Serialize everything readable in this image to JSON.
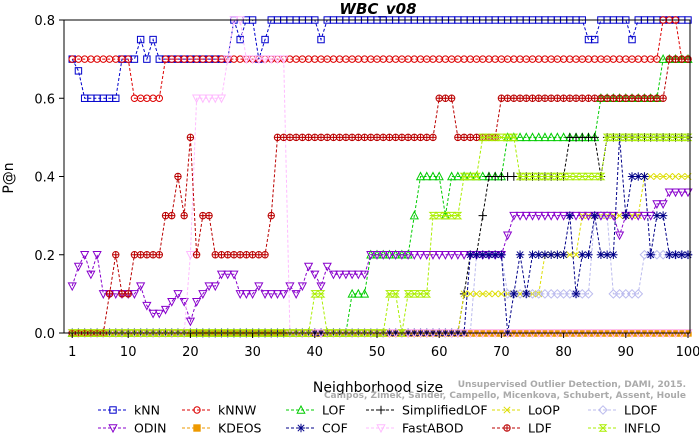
{
  "chart_data": {
    "type": "line",
    "title": "WBC_v08",
    "xlabel": "Neighborhood size",
    "ylabel": "P@n",
    "xlim": [
      0,
      100
    ],
    "ylim": [
      0,
      0.8
    ],
    "xticks": [
      1,
      10,
      20,
      30,
      40,
      50,
      60,
      70,
      80,
      90,
      100
    ],
    "yticks": [
      0.0,
      0.2,
      0.4,
      0.6,
      0.8
    ],
    "xtick_labels": [
      "1",
      "10",
      "20",
      "30",
      "40",
      "50",
      "60",
      "70",
      "80",
      "90",
      "100"
    ],
    "ytick_labels": [
      "0.0",
      "0.2",
      "0.4",
      "0.6",
      "0.8"
    ],
    "grid": false,
    "legend_position": "bottom",
    "watermark": "Campos, Zimek, Sander, Campello, Micenkova, Schubert, Assent, Houle\nUnsupervised Outlier Detection, DAMI, 2015.",
    "series": [
      {
        "name": "kNN",
        "color": "#0000cc",
        "marker": "square",
        "points": [
          [
            1,
            0.7
          ],
          [
            2,
            0.67
          ],
          [
            3,
            0.6
          ],
          [
            8,
            0.6
          ],
          [
            9,
            0.7
          ],
          [
            11,
            0.7
          ],
          [
            12,
            0.75
          ],
          [
            13,
            0.7
          ],
          [
            14,
            0.75
          ],
          [
            15,
            0.7
          ],
          [
            26,
            0.7
          ],
          [
            27,
            0.8
          ],
          [
            28,
            0.75
          ],
          [
            29,
            0.8
          ],
          [
            31,
            0.7
          ],
          [
            32,
            0.75
          ],
          [
            33,
            0.8
          ],
          [
            40,
            0.8
          ],
          [
            41,
            0.75
          ],
          [
            42,
            0.8
          ],
          [
            83,
            0.8
          ],
          [
            84,
            0.75
          ],
          [
            85,
            0.75
          ],
          [
            86,
            0.8
          ],
          [
            90,
            0.8
          ],
          [
            91,
            0.75
          ],
          [
            92,
            0.8
          ],
          [
            100,
            0.8
          ]
        ]
      },
      {
        "name": "kNNW",
        "color": "#dd0000",
        "marker": "circle",
        "points": [
          [
            1,
            0.7
          ],
          [
            10,
            0.7
          ],
          [
            11,
            0.6
          ],
          [
            15,
            0.6
          ],
          [
            16,
            0.7
          ],
          [
            95,
            0.7
          ],
          [
            96,
            0.8
          ],
          [
            98,
            0.8
          ],
          [
            99,
            0.7
          ],
          [
            100,
            0.7
          ]
        ]
      },
      {
        "name": "LOF",
        "color": "#00cc00",
        "marker": "triangle-up",
        "points": [
          [
            1,
            0.0
          ],
          [
            45,
            0.0
          ],
          [
            46,
            0.1
          ],
          [
            48,
            0.1
          ],
          [
            49,
            0.2
          ],
          [
            55,
            0.2
          ],
          [
            56,
            0.3
          ],
          [
            57,
            0.4
          ],
          [
            60,
            0.4
          ],
          [
            61,
            0.3
          ],
          [
            62,
            0.4
          ],
          [
            70,
            0.4
          ],
          [
            71,
            0.5
          ],
          [
            85,
            0.5
          ],
          [
            86,
            0.6
          ],
          [
            95,
            0.6
          ],
          [
            96,
            0.7
          ],
          [
            100,
            0.7
          ]
        ]
      },
      {
        "name": "SimplifiedLOF",
        "color": "#000000",
        "marker": "plus",
        "points": [
          [
            1,
            0.0
          ],
          [
            63,
            0.0
          ],
          [
            64,
            0.1
          ],
          [
            65,
            0.2
          ],
          [
            66,
            0.2
          ],
          [
            67,
            0.3
          ],
          [
            68,
            0.4
          ],
          [
            80,
            0.4
          ],
          [
            81,
            0.5
          ],
          [
            85,
            0.5
          ],
          [
            86,
            0.4
          ],
          [
            87,
            0.5
          ],
          [
            100,
            0.5
          ]
        ]
      },
      {
        "name": "LoOP",
        "color": "#dddd00",
        "marker": "x",
        "points": [
          [
            1,
            0.0
          ],
          [
            63,
            0.0
          ],
          [
            64,
            0.1
          ],
          [
            76,
            0.1
          ],
          [
            77,
            0.2
          ],
          [
            82,
            0.2
          ],
          [
            83,
            0.3
          ],
          [
            92,
            0.3
          ],
          [
            93,
            0.4
          ],
          [
            100,
            0.4
          ]
        ]
      },
      {
        "name": "LDOF",
        "color": "#bbbbee",
        "marker": "diamond",
        "points": [
          [
            1,
            0.0
          ],
          [
            65,
            0.0
          ],
          [
            66,
            0.2
          ],
          [
            70,
            0.2
          ],
          [
            71,
            0.1
          ],
          [
            84,
            0.1
          ],
          [
            85,
            0.3
          ],
          [
            87,
            0.3
          ],
          [
            88,
            0.1
          ],
          [
            92,
            0.1
          ],
          [
            93,
            0.2
          ],
          [
            100,
            0.2
          ]
        ]
      },
      {
        "name": "ODIN",
        "color": "#8800cc",
        "marker": "triangle-down",
        "points": [
          [
            1,
            0.12
          ],
          [
            2,
            0.17
          ],
          [
            3,
            0.2
          ],
          [
            4,
            0.15
          ],
          [
            5,
            0.2
          ],
          [
            6,
            0.1
          ],
          [
            11,
            0.1
          ],
          [
            12,
            0.12
          ],
          [
            13,
            0.07
          ],
          [
            14,
            0.05
          ],
          [
            15,
            0.05
          ],
          [
            16,
            0.06
          ],
          [
            17,
            0.08
          ],
          [
            18,
            0.1
          ],
          [
            19,
            0.08
          ],
          [
            20,
            0.03
          ],
          [
            21,
            0.08
          ],
          [
            22,
            0.1
          ],
          [
            23,
            0.12
          ],
          [
            24,
            0.12
          ],
          [
            25,
            0.15
          ],
          [
            27,
            0.15
          ],
          [
            28,
            0.1
          ],
          [
            30,
            0.1
          ],
          [
            31,
            0.12
          ],
          [
            32,
            0.1
          ],
          [
            35,
            0.1
          ],
          [
            36,
            0.12
          ],
          [
            37,
            0.1
          ],
          [
            38,
            0.12
          ],
          [
            39,
            0.17
          ],
          [
            40,
            0.15
          ],
          [
            41,
            0.12
          ],
          [
            42,
            0.17
          ],
          [
            43,
            0.15
          ],
          [
            48,
            0.15
          ],
          [
            49,
            0.2
          ],
          [
            70,
            0.2
          ],
          [
            71,
            0.25
          ],
          [
            72,
            0.3
          ],
          [
            88,
            0.3
          ],
          [
            89,
            0.25
          ],
          [
            90,
            0.3
          ],
          [
            94,
            0.3
          ],
          [
            95,
            0.33
          ],
          [
            96,
            0.33
          ],
          [
            97,
            0.36
          ],
          [
            100,
            0.36
          ]
        ]
      },
      {
        "name": "KDEOS",
        "color": "#ee9900",
        "marker": "square-filled",
        "points": [
          [
            1,
            0.0
          ],
          [
            100,
            0.0
          ]
        ]
      },
      {
        "name": "COF",
        "color": "#000088",
        "marker": "asterisk",
        "points": [
          [
            1,
            0.0
          ],
          [
            64,
            0.0
          ],
          [
            65,
            0.2
          ],
          [
            70,
            0.2
          ],
          [
            71,
            0.0
          ],
          [
            72,
            0.1
          ],
          [
            73,
            0.2
          ],
          [
            74,
            0.1
          ],
          [
            75,
            0.2
          ],
          [
            80,
            0.2
          ],
          [
            81,
            0.3
          ],
          [
            82,
            0.1
          ],
          [
            83,
            0.2
          ],
          [
            84,
            0.2
          ],
          [
            85,
            0.3
          ],
          [
            86,
            0.2
          ],
          [
            88,
            0.2
          ],
          [
            89,
            0.5
          ],
          [
            90,
            0.3
          ],
          [
            91,
            0.4
          ],
          [
            93,
            0.4
          ],
          [
            94,
            0.2
          ],
          [
            95,
            0.3
          ],
          [
            96,
            0.3
          ],
          [
            97,
            0.2
          ],
          [
            100,
            0.2
          ]
        ]
      },
      {
        "name": "FastABOD",
        "color": "#ffbbff",
        "marker": "triangle-down",
        "points": [
          [
            1,
            0.0
          ],
          [
            19,
            0.0
          ],
          [
            20,
            0.2
          ],
          [
            21,
            0.6
          ],
          [
            25,
            0.6
          ],
          [
            26,
            0.7
          ],
          [
            27,
            0.8
          ],
          [
            28,
            0.8
          ],
          [
            29,
            0.7
          ],
          [
            35,
            0.7
          ],
          [
            36,
            0.0
          ],
          [
            100,
            0.0
          ]
        ]
      },
      {
        "name": "LDF",
        "color": "#bb0000",
        "marker": "circle-plus",
        "points": [
          [
            1,
            0.0
          ],
          [
            6,
            0.0
          ],
          [
            7,
            0.1
          ],
          [
            8,
            0.2
          ],
          [
            9,
            0.1
          ],
          [
            10,
            0.1
          ],
          [
            11,
            0.2
          ],
          [
            15,
            0.2
          ],
          [
            16,
            0.3
          ],
          [
            17,
            0.3
          ],
          [
            18,
            0.4
          ],
          [
            19,
            0.3
          ],
          [
            20,
            0.5
          ],
          [
            21,
            0.2
          ],
          [
            22,
            0.3
          ],
          [
            23,
            0.3
          ],
          [
            24,
            0.2
          ],
          [
            32,
            0.2
          ],
          [
            33,
            0.3
          ],
          [
            34,
            0.5
          ],
          [
            59,
            0.5
          ],
          [
            60,
            0.6
          ],
          [
            62,
            0.6
          ],
          [
            63,
            0.5
          ],
          [
            69,
            0.5
          ],
          [
            70,
            0.6
          ],
          [
            96,
            0.6
          ],
          [
            97,
            0.7
          ],
          [
            100,
            0.7
          ]
        ]
      },
      {
        "name": "INFLO",
        "color": "#aaee00",
        "marker": "hourglass",
        "points": [
          [
            1,
            0.0
          ],
          [
            39,
            0.0
          ],
          [
            40,
            0.1
          ],
          [
            41,
            0.1
          ],
          [
            42,
            0.0
          ],
          [
            51,
            0.0
          ],
          [
            52,
            0.1
          ],
          [
            53,
            0.1
          ],
          [
            54,
            0.0
          ],
          [
            55,
            0.1
          ],
          [
            58,
            0.1
          ],
          [
            59,
            0.3
          ],
          [
            63,
            0.3
          ],
          [
            64,
            0.4
          ],
          [
            66,
            0.4
          ],
          [
            67,
            0.5
          ],
          [
            72,
            0.5
          ],
          [
            73,
            0.4
          ],
          [
            86,
            0.4
          ],
          [
            87,
            0.5
          ],
          [
            100,
            0.5
          ]
        ]
      }
    ]
  }
}
